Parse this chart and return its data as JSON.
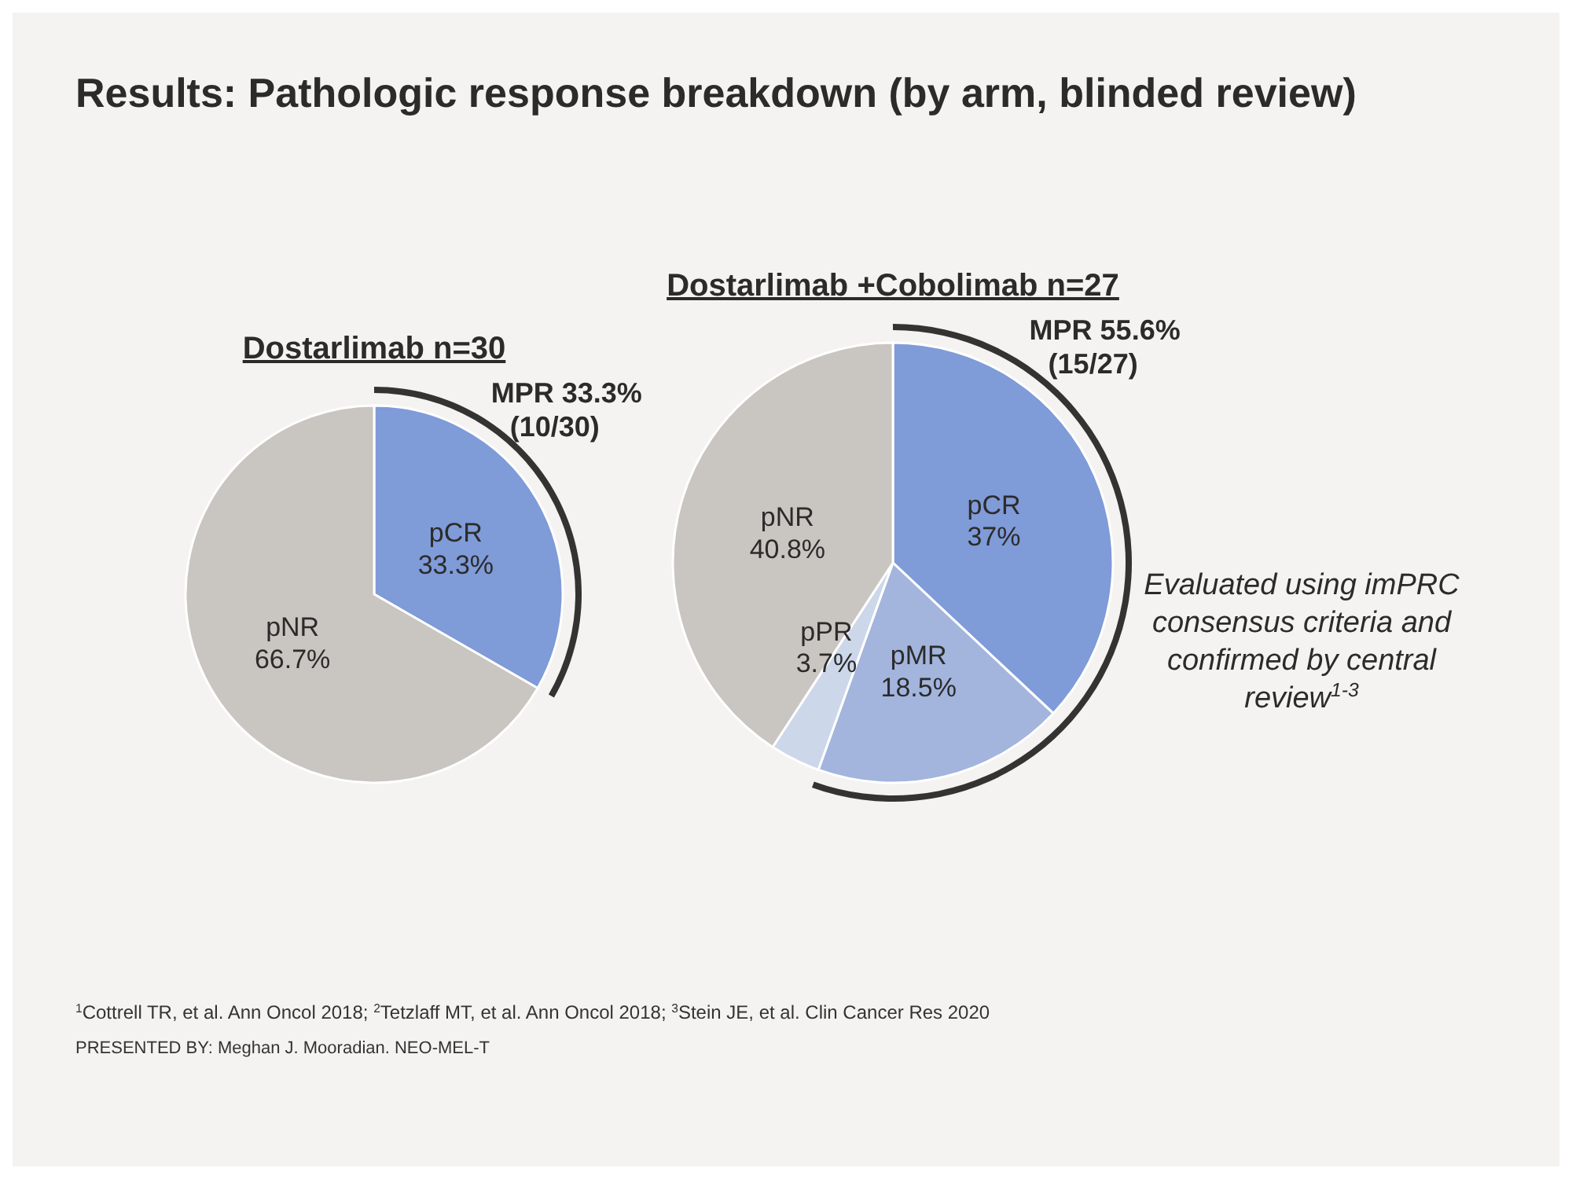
{
  "chart_data": [
    {
      "type": "other",
      "title": "Results: Pathologic response breakdown (by arm, blinded review)"
    },
    {
      "type": "pie",
      "title": "Dostarlimab n=30",
      "categories": [
        "pCR",
        "pNR"
      ],
      "values": [
        33.3,
        66.7
      ],
      "value_labels": [
        "33.3%",
        "66.7%"
      ],
      "colors": [
        "#7f9bd8",
        "#c9c5c0"
      ],
      "annotations": [
        "MPR 33.3%\n(10/30)"
      ]
    },
    {
      "type": "pie",
      "title": "Dostarlimab +Cobolimab n=27",
      "categories": [
        "pCR",
        "pMR",
        "pPR",
        "pNR"
      ],
      "values": [
        37,
        18.5,
        3.7,
        40.8
      ],
      "value_labels": [
        "37%",
        "18.5%",
        "3.7%",
        "40.8%"
      ],
      "colors": [
        "#7f9bd8",
        "#a3b5dd",
        "#cdd7ea",
        "#c9c5c0"
      ],
      "annotations": [
        "MPR 55.6%\n(15/27)",
        "Evaluated using imPRC consensus criteria and confirmed by central review$^{1-3}$"
      ]
    },
    {
      "type": "other",
      "annotations": [
        "$^{1}$Cottrell TR, et al. Ann Oncol 2018; $^{2}$Tetzlaff MT, et al. Ann Oncol 2018; $^{3}$Stein JE, et al. Clin Cancer Res 2020",
        "PRESENTED BY: Meghan J. Mooradian. NEO-MEL-T"
      ]
    }
  ]
}
